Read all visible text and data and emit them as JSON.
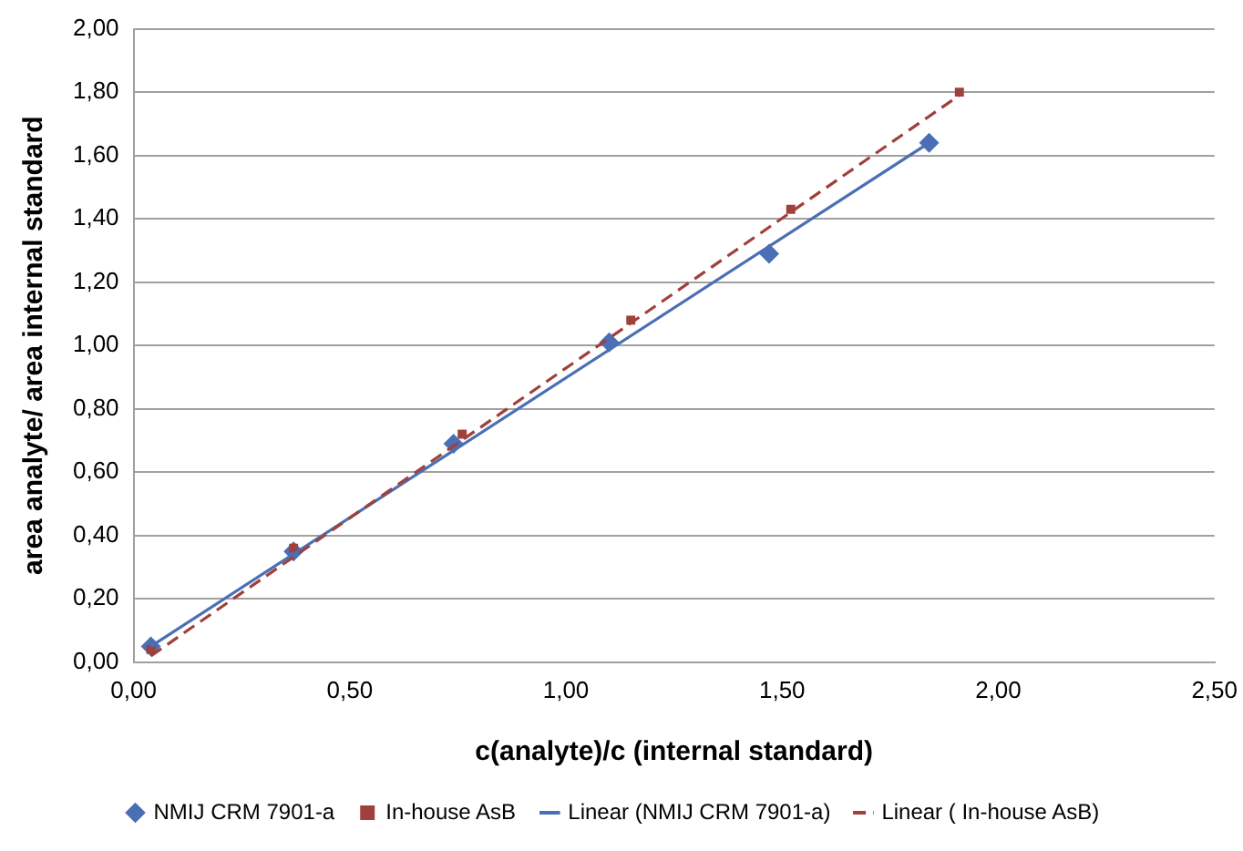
{
  "chart_data": {
    "type": "scatter",
    "xlabel": "c(analyte)/c (internal standard)",
    "ylabel": "area analyte/ area internal standard",
    "xlim": [
      0,
      2.5
    ],
    "ylim": [
      0,
      2
    ],
    "xticks": [
      {
        "value": 0,
        "label": "0,00"
      },
      {
        "value": 0.5,
        "label": "0,50"
      },
      {
        "value": 1,
        "label": "1,00"
      },
      {
        "value": 1.5,
        "label": "1,50"
      },
      {
        "value": 2,
        "label": "2,00"
      },
      {
        "value": 2.5,
        "label": "2,50"
      }
    ],
    "yticks": [
      {
        "value": 0,
        "label": "0,00"
      },
      {
        "value": 0.2,
        "label": "0,20"
      },
      {
        "value": 0.4,
        "label": "0,40"
      },
      {
        "value": 0.6,
        "label": "0,60"
      },
      {
        "value": 0.8,
        "label": "0,80"
      },
      {
        "value": 1,
        "label": "1,00"
      },
      {
        "value": 1.2,
        "label": "1,20"
      },
      {
        "value": 1.4,
        "label": "1,40"
      },
      {
        "value": 1.6,
        "label": "1,60"
      },
      {
        "value": 1.8,
        "label": "1,80"
      },
      {
        "value": 2,
        "label": "2,00"
      }
    ],
    "grid": "y",
    "legend": "bottom",
    "series": [
      {
        "name": "NMIJ CRM 7901-a",
        "color": "#4a6fb5",
        "type": "scatter",
        "marker": "diamond",
        "x": [
          0.04,
          0.37,
          0.74,
          1.1,
          1.47,
          1.84
        ],
        "values": [
          0.05,
          0.35,
          0.69,
          1.01,
          1.29,
          1.64
        ]
      },
      {
        "name": "In-house AsB",
        "color": "#a0403c",
        "type": "scatter",
        "marker": "square",
        "x": [
          0.04,
          0.37,
          0.76,
          1.15,
          1.52,
          1.91
        ],
        "values": [
          0.04,
          0.36,
          0.72,
          1.08,
          1.43,
          1.8
        ]
      },
      {
        "name": "Linear (NMIJ CRM 7901-a)",
        "color": "#4a6fb5",
        "type": "line",
        "marker": "none",
        "line_style": "solid",
        "x": [
          0.04,
          1.84
        ],
        "values": [
          0.05,
          1.64
        ]
      },
      {
        "name": "Linear ( In-house AsB)",
        "color": "#a0403c",
        "type": "line",
        "marker": "none",
        "line_style": "dashed",
        "x": [
          0.04,
          1.91
        ],
        "values": [
          0.02,
          1.79
        ]
      }
    ]
  }
}
